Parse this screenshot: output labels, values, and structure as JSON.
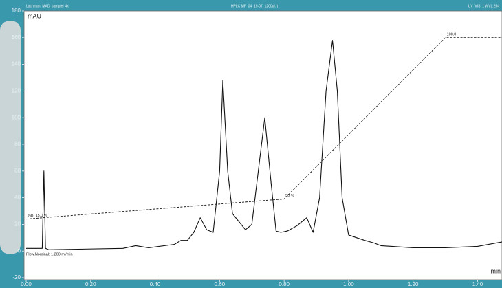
{
  "chart_data": {
    "type": "line",
    "header": [
      "Lachman_MAD_sampler 4k",
      "HPLC MF_04_19-07_1200ul.rt",
      "UV_VIS_1 WVL:254"
    ],
    "ylabel": "mAU",
    "xlabel": "min",
    "xlim": [
      0,
      1.48
    ],
    "ylim": [
      -20,
      180
    ],
    "xticks": [
      {
        "value": 0,
        "label": "0.00"
      },
      {
        "value": 0.2,
        "label": "0.20"
      },
      {
        "value": 0.4,
        "label": "0.40"
      },
      {
        "value": 0.6,
        "label": "0.60"
      },
      {
        "value": 0.8,
        "label": "0.80"
      },
      {
        "value": 1.0,
        "label": "1.00"
      },
      {
        "value": 1.2,
        "label": "1.20"
      },
      {
        "value": 1.4,
        "label": "1.40"
      }
    ],
    "yticks": [
      -20,
      0,
      20,
      40,
      60,
      80,
      100,
      120,
      140,
      160,
      180
    ],
    "series": [
      {
        "name": "UV_VIS_1",
        "color": "#111111",
        "dashed": false,
        "x": [
          0,
          0.05,
          0.055,
          0.06,
          0.07,
          0.3,
          0.34,
          0.38,
          0.46,
          0.48,
          0.5,
          0.52,
          0.54,
          0.56,
          0.58,
          0.6,
          0.61,
          0.625,
          0.64,
          0.66,
          0.68,
          0.7,
          0.72,
          0.74,
          0.76,
          0.775,
          0.79,
          0.81,
          0.84,
          0.87,
          0.89,
          0.91,
          0.93,
          0.95,
          0.965,
          0.98,
          1.0,
          1.05,
          1.08,
          1.1,
          1.2,
          1.3,
          1.4,
          1.48
        ],
        "values": [
          2,
          2,
          60,
          2,
          1,
          2,
          4,
          2.5,
          5,
          8,
          8,
          14,
          25,
          16,
          14,
          60,
          128,
          60,
          28,
          22,
          16,
          20,
          60,
          100,
          50,
          15,
          14,
          15,
          19,
          25,
          14,
          40,
          120,
          158,
          120,
          40,
          12,
          8,
          6,
          4,
          2.5,
          2.5,
          3.5,
          7
        ]
      },
      {
        "name": "%B",
        "color": "#222222",
        "dashed": true,
        "x": [
          0,
          0.8,
          1.3,
          1.48
        ],
        "values": [
          24,
          39,
          160,
          160
        ],
        "value_labels": [
          "%B: 15.0 %",
          "50 %",
          "100.0",
          null
        ]
      }
    ],
    "annotation": "Flow.Nominal: 1.200 ml/min"
  }
}
